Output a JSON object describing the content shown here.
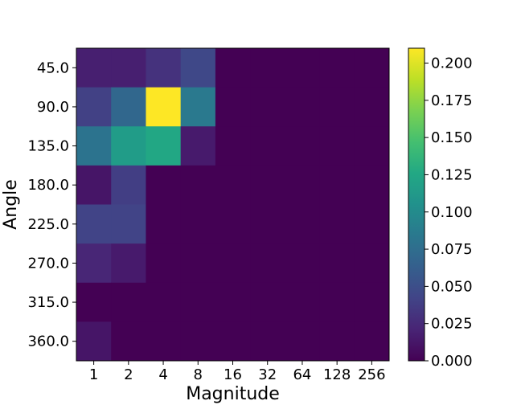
{
  "chart_data": {
    "type": "heatmap",
    "xlabel": "Magnitude",
    "ylabel": "Angle",
    "x_categories": [
      "1",
      "2",
      "4",
      "8",
      "16",
      "32",
      "64",
      "128",
      "256"
    ],
    "y_categories": [
      "45.0",
      "90.0",
      "135.0",
      "180.0",
      "225.0",
      "270.0",
      "315.0",
      "360.0"
    ],
    "values": [
      [
        0.018,
        0.018,
        0.03,
        0.045,
        0,
        0,
        0,
        0,
        0
      ],
      [
        0.04,
        0.07,
        0.21,
        0.085,
        0,
        0,
        0,
        0,
        0
      ],
      [
        0.08,
        0.115,
        0.125,
        0.015,
        0,
        0,
        0,
        0,
        0
      ],
      [
        0.012,
        0.038,
        0,
        0,
        0,
        0,
        0,
        0,
        0
      ],
      [
        0.042,
        0.042,
        0,
        0,
        0,
        0,
        0,
        0,
        0
      ],
      [
        0.022,
        0.015,
        0,
        0,
        0,
        0,
        0,
        0,
        0
      ],
      [
        0,
        0,
        0,
        0,
        0,
        0,
        0,
        0,
        0
      ],
      [
        0.012,
        0,
        0,
        0,
        0,
        0,
        0,
        0,
        0
      ]
    ],
    "colorbar": {
      "colormap": "viridis",
      "range": [
        0,
        0.21
      ],
      "ticks": [
        0.0,
        0.025,
        0.05,
        0.075,
        0.1,
        0.125,
        0.15,
        0.175,
        0.2
      ],
      "tick_labels": [
        "0.000",
        "0.025",
        "0.050",
        "0.075",
        "0.100",
        "0.125",
        "0.150",
        "0.175",
        "0.200"
      ]
    }
  }
}
